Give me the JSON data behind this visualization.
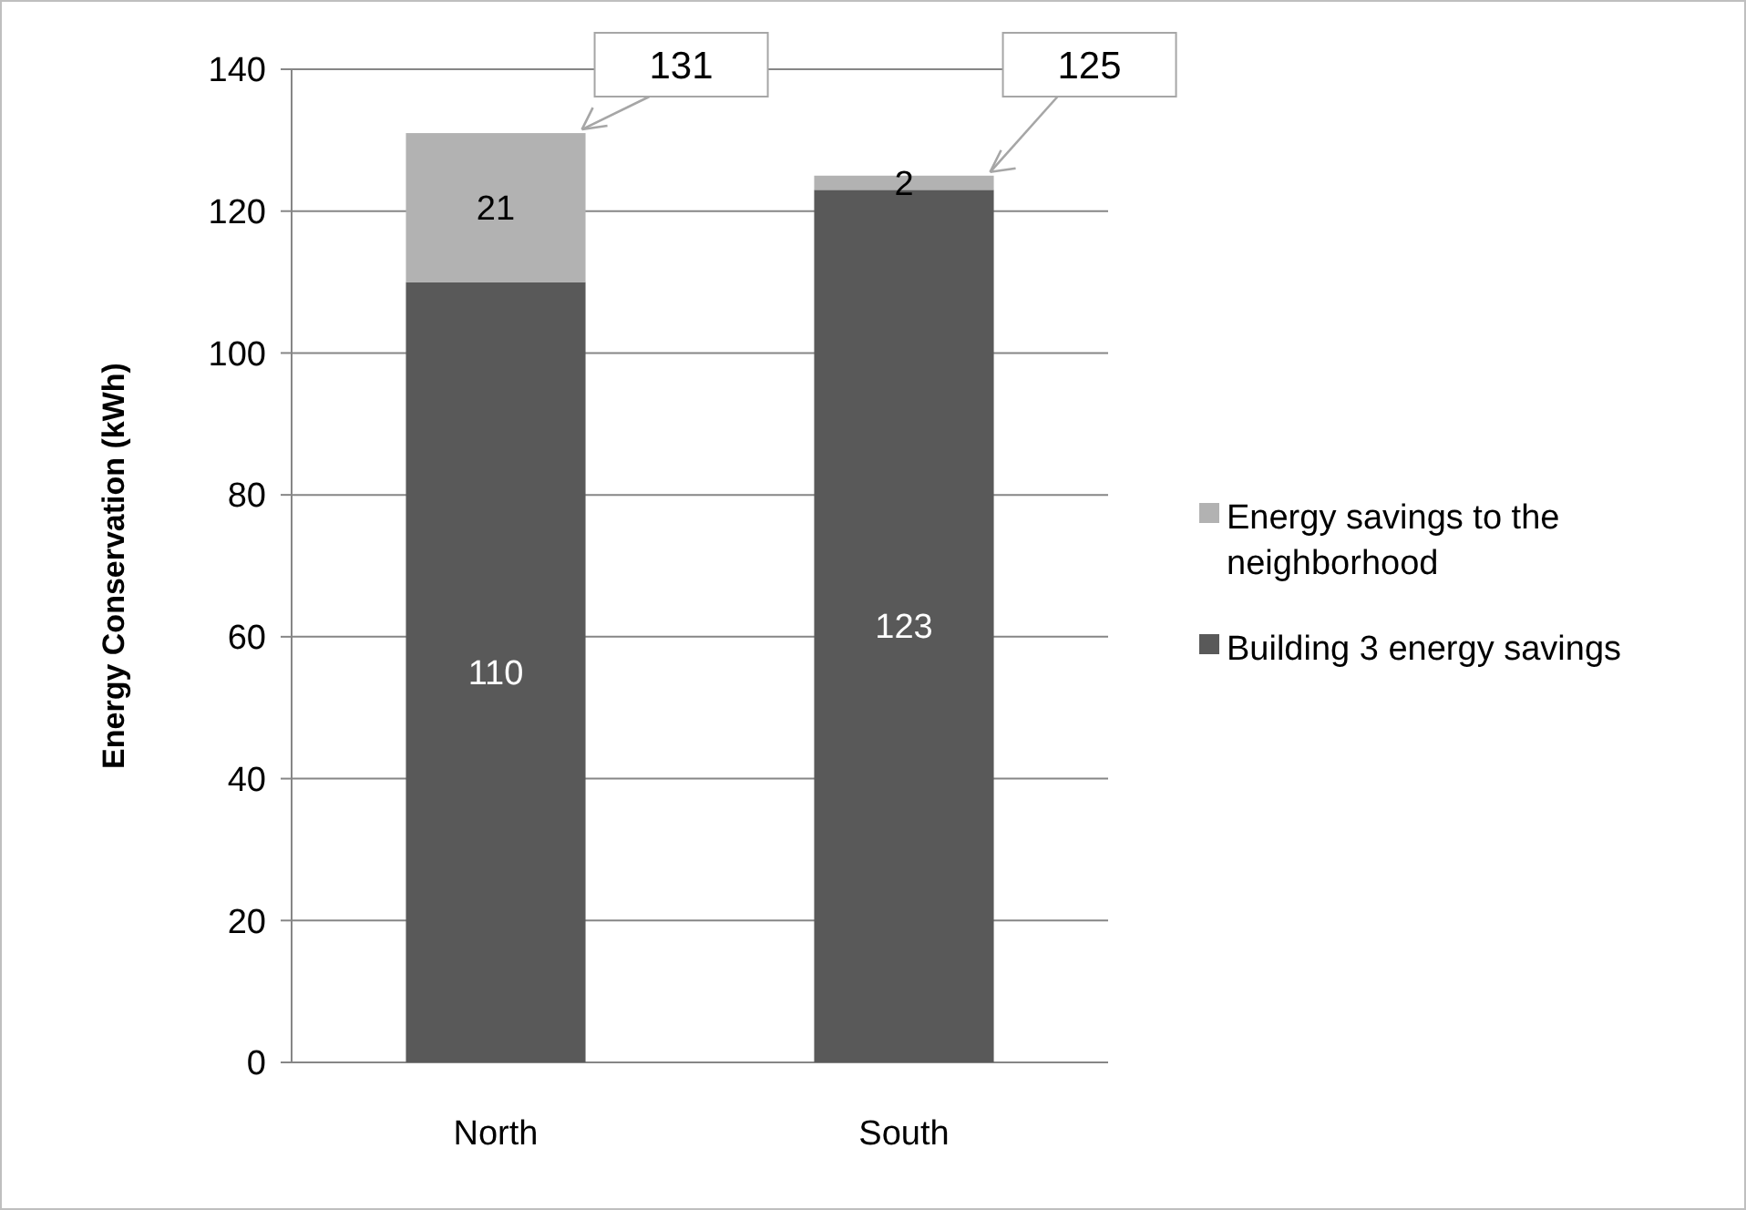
{
  "chart_data": {
    "type": "bar",
    "ylabel": "Energy Conservation (kWh)",
    "categories": [
      "North",
      "South"
    ],
    "stacked": true,
    "series": [
      {
        "name": "Building 3 energy savings",
        "color": "#595959",
        "values": [
          110,
          123
        ]
      },
      {
        "name": "Energy savings to the neighborhood",
        "color": "#b2b2b2",
        "values": [
          21,
          2
        ]
      }
    ],
    "totals": [
      "131",
      "125"
    ],
    "data_labels": true,
    "ylim": [
      0,
      140
    ],
    "yticks": [
      0,
      20,
      40,
      60,
      80,
      100,
      120,
      140
    ],
    "grid": "y",
    "legend": "right"
  }
}
